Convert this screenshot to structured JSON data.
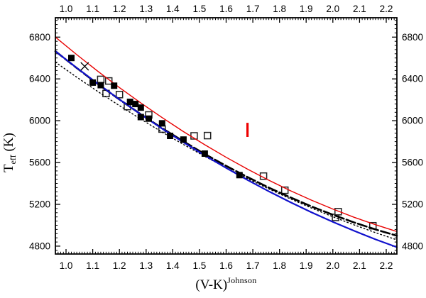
{
  "figure": {
    "background": "#ffffff",
    "frame_color": "#000000"
  },
  "axes": {
    "x": {
      "title_main": "(V-K)",
      "title_sup": "Johnson",
      "min": 0.96,
      "max": 2.24,
      "tick_values": [
        1.0,
        1.1,
        1.2,
        1.3,
        1.4,
        1.5,
        1.6,
        1.7,
        1.8,
        1.9,
        2.0,
        2.1,
        2.2
      ],
      "tick_labels": [
        "1.0",
        "1.1",
        "1.2",
        "1.3",
        "1.4",
        "1.5",
        "1.6",
        "1.7",
        "1.8",
        "1.9",
        "2.0",
        "2.1",
        "2.2"
      ],
      "minor_step": 0.01
    },
    "y": {
      "title_main": "T",
      "title_sub": "eff",
      "title_rest": " (K)",
      "min": 4725,
      "max": 6985,
      "tick_values": [
        4800,
        5200,
        5600,
        6000,
        6400,
        6800
      ],
      "tick_labels": [
        "4800",
        "5200",
        "5600",
        "6000",
        "6400",
        "6800"
      ],
      "minor_step": 40
    }
  },
  "chart_data": {
    "type": "scatter",
    "title": "",
    "xlabel": "(V-K) Johnson",
    "ylabel": "T eff (K)",
    "xlim": [
      0.96,
      2.24
    ],
    "ylim": [
      4725,
      6985
    ],
    "grid": false,
    "legend": "none",
    "series": [
      {
        "name": "filled-squares",
        "marker": "filled-square",
        "color": "#000000",
        "points": [
          [
            1.02,
            6600
          ],
          [
            1.1,
            6365
          ],
          [
            1.13,
            6340
          ],
          [
            1.18,
            6335
          ],
          [
            1.24,
            6180
          ],
          [
            1.26,
            6160
          ],
          [
            1.28,
            6125
          ],
          [
            1.28,
            6035
          ],
          [
            1.31,
            6020
          ],
          [
            1.36,
            5975
          ],
          [
            1.39,
            5855
          ],
          [
            1.44,
            5820
          ],
          [
            1.52,
            5685
          ],
          [
            1.65,
            5480
          ]
        ]
      },
      {
        "name": "open-squares",
        "marker": "open-square",
        "color": "#222222",
        "points": [
          [
            1.13,
            6395
          ],
          [
            1.16,
            6380
          ],
          [
            1.15,
            6260
          ],
          [
            1.2,
            6250
          ],
          [
            1.23,
            6135
          ],
          [
            1.31,
            6055
          ],
          [
            1.36,
            5920
          ],
          [
            1.48,
            5855
          ],
          [
            1.53,
            5858
          ],
          [
            1.74,
            5470
          ],
          [
            1.82,
            5335
          ],
          [
            2.01,
            5075
          ],
          [
            2.02,
            5130
          ],
          [
            2.15,
            4995
          ]
        ]
      },
      {
        "name": "cross-marker",
        "marker": "x-cross",
        "color": "#000000",
        "points": [
          [
            1.07,
            6520
          ]
        ]
      }
    ],
    "curve_x": [
      0.96,
      1.04,
      1.12,
      1.2,
      1.28,
      1.36,
      1.44,
      1.52,
      1.6,
      1.68,
      1.76,
      1.84,
      1.92,
      2.0,
      2.08,
      2.16,
      2.24
    ],
    "curves": [
      {
        "name": "black-dotted-curve",
        "color": "#000000",
        "style": "dotted",
        "dash": "1.6 3.4",
        "width": 1.4,
        "y": [
          6560,
          6416,
          6278,
          6144,
          6015,
          5891,
          5773,
          5659,
          5550,
          5446,
          5348,
          5254,
          5165,
          5081,
          5003,
          4929,
          4860
        ]
      },
      {
        "name": "black-long-dash-curve",
        "color": "#000000",
        "style": "long-dash",
        "dash": "13 4",
        "width": 2.6,
        "y": [
          6665,
          6504,
          6350,
          6203,
          6062,
          5929,
          5802,
          5681,
          5568,
          5461,
          5360,
          5267,
          5180,
          5100,
          5026,
          4960,
          4900
        ]
      },
      {
        "name": "blue-solid-curve",
        "color": "#1010cc",
        "style": "solid",
        "dash": "",
        "width": 2.2,
        "y": [
          6665,
          6506,
          6352,
          6204,
          6061,
          5924,
          5793,
          5668,
          5548,
          5433,
          5324,
          5221,
          5124,
          5032,
          4946,
          4865,
          4790
        ]
      },
      {
        "name": "red-solid-curve",
        "color": "#e80000",
        "style": "solid",
        "dash": "",
        "width": 1.4,
        "y": [
          6800,
          6632,
          6471,
          6317,
          6170,
          6030,
          5896,
          5770,
          5650,
          5537,
          5431,
          5332,
          5240,
          5155,
          5076,
          5005,
          4940
        ]
      }
    ],
    "error_bar": {
      "x": 1.68,
      "y_from": 5845,
      "y_to": 5980,
      "color": "#ee0000",
      "stroke_width": 3.2
    }
  }
}
